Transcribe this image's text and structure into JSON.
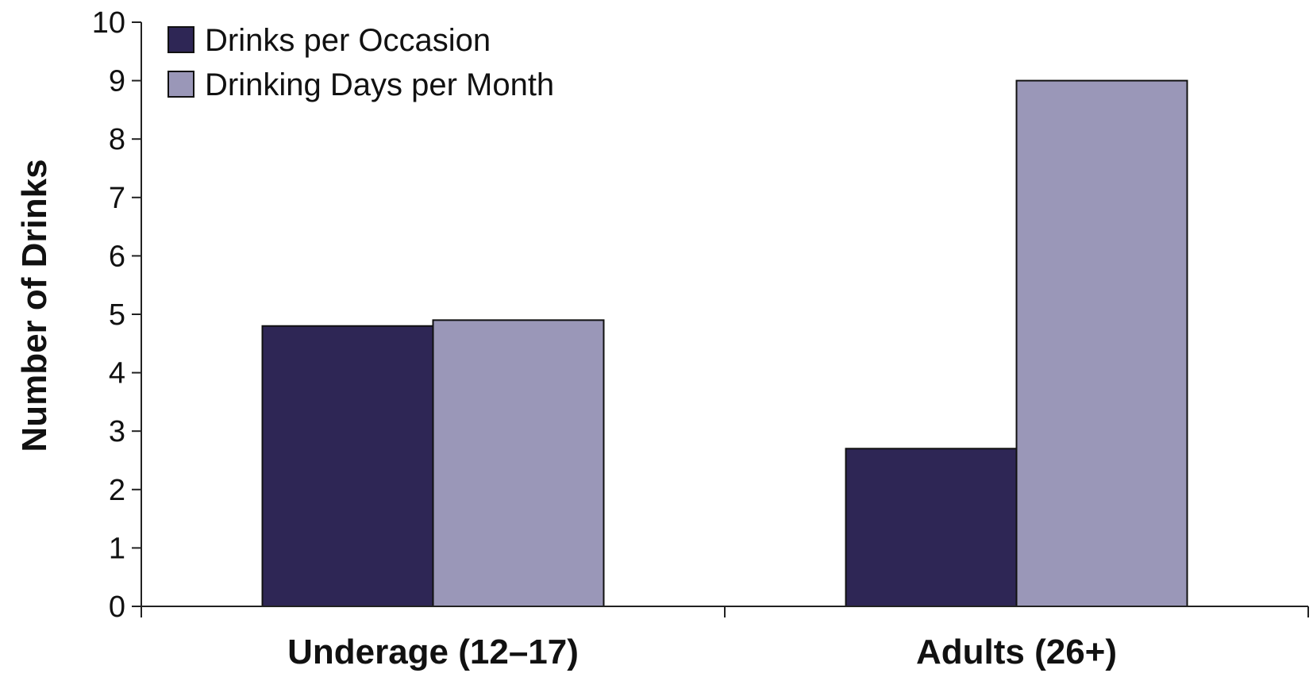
{
  "chart_data": {
    "type": "bar",
    "categories": [
      "Underage (12–17)",
      "Adults (26+)"
    ],
    "series": [
      {
        "name": "Drinks per Occasion",
        "values": [
          4.8,
          2.7
        ],
        "color": "#2e2655"
      },
      {
        "name": "Drinking Days per Month",
        "values": [
          4.9,
          9.0
        ],
        "color": "#9a97b8"
      }
    ],
    "xlabel": "",
    "ylabel": "Number of Drinks",
    "ylim": [
      0,
      10
    ],
    "yticks": [
      0,
      1,
      2,
      3,
      4,
      5,
      6,
      7,
      8,
      9,
      10
    ],
    "grid": false,
    "legend": "top-left"
  }
}
